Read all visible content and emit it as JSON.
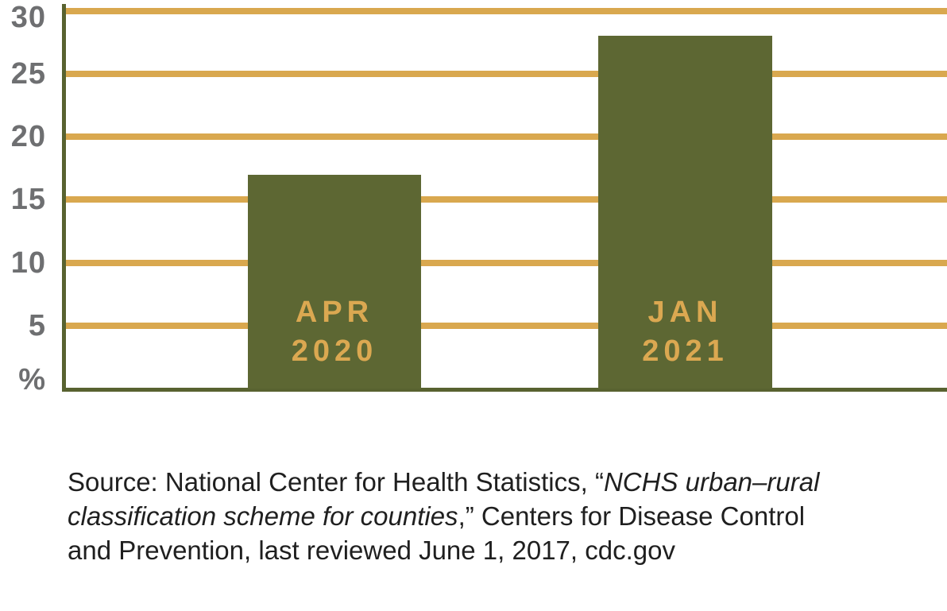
{
  "chart_data": {
    "type": "bar",
    "categories": [
      "APR 2020",
      "JAN 2021"
    ],
    "values": [
      17,
      28
    ],
    "bar_labels": [
      [
        "APR",
        "2020"
      ],
      [
        "JAN",
        "2021"
      ]
    ],
    "yticks_display": [
      "30",
      "25",
      "20",
      "15",
      "10",
      "5"
    ],
    "ytick_values": [
      30,
      25,
      20,
      15,
      10,
      5
    ],
    "ylabel": "%",
    "ylim": [
      0,
      31
    ],
    "grid": "horizontal-gold-lines",
    "legend": "none",
    "colors": {
      "bar": "#5d6733",
      "gridline": "#d9a84f",
      "axis": "#586230",
      "tick_label": "#6e6f71",
      "bar_label": "#dba851"
    }
  },
  "source_note": {
    "lines": [
      {
        "parts": [
          {
            "text": "Source: National Center for Health Statistics, “",
            "italic": false
          },
          {
            "text": "NCHS urban–rural",
            "italic": true
          }
        ]
      },
      {
        "parts": [
          {
            "text": "classification scheme for counties",
            "italic": true
          },
          {
            "text": ",” Centers for Disease Control",
            "italic": false
          }
        ]
      },
      {
        "parts": [
          {
            "text": "and Prevention, last reviewed June 1, 2017, cdc.gov",
            "italic": false
          }
        ]
      }
    ]
  }
}
